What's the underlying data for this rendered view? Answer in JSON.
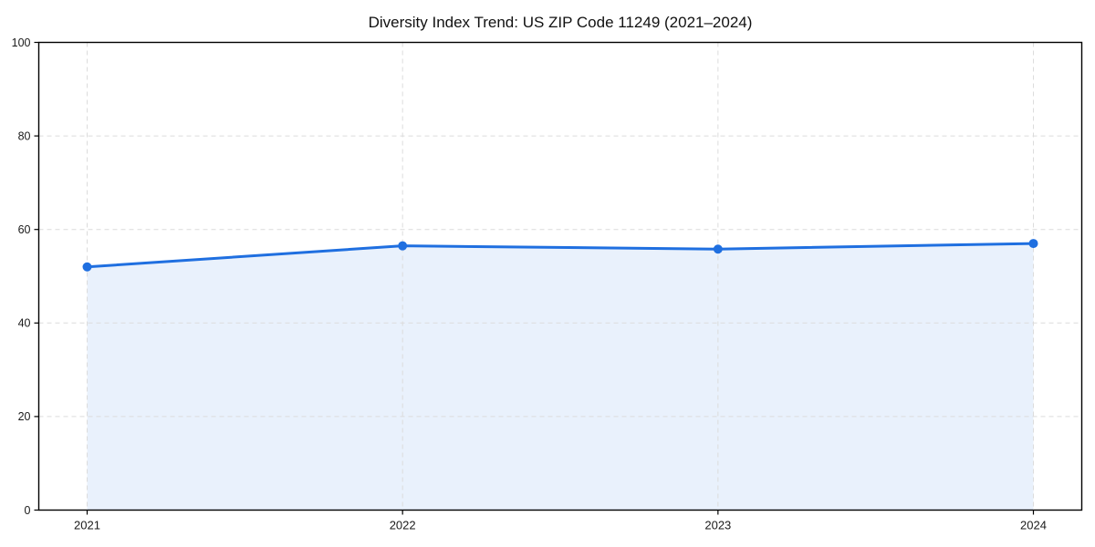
{
  "figure": {
    "background": "#ffffff"
  },
  "chart_data": {
    "type": "area",
    "title": "Diversity Index Trend: US ZIP Code 11249 (2021–2024)",
    "x": [
      "2021",
      "2022",
      "2023",
      "2024"
    ],
    "values": [
      52,
      56.5,
      55.8,
      57
    ],
    "xlabel": "",
    "ylabel": "",
    "ylim": [
      0,
      100
    ],
    "yticks": [
      0,
      20,
      40,
      60,
      80,
      100
    ],
    "grid": {
      "style": "dashed",
      "axes": "both",
      "color": "#dcdcdc"
    },
    "legend": "none",
    "marker": "circle",
    "colors": {
      "line": "#1f6fe0",
      "area_fill": "#e9f1fc",
      "axis": "#000000",
      "tick_text": "#1a1a1a",
      "title_text": "#111111"
    }
  }
}
